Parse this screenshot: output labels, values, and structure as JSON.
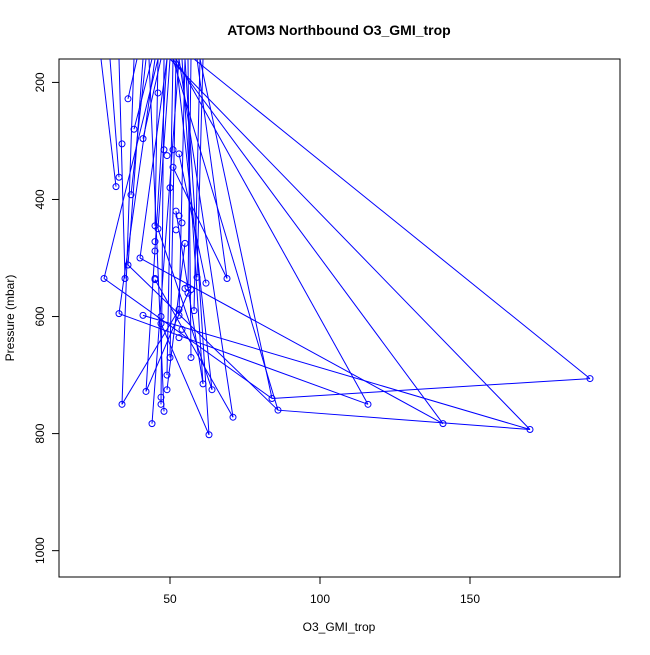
{
  "chart_data": {
    "type": "scatter",
    "title": "ATOM3 Northbound O3_GMI_trop",
    "xlabel": "O3_GMI_trop",
    "ylabel": "Pressure (mbar)",
    "xlim": [
      13,
      200
    ],
    "ylim": [
      1045,
      160
    ],
    "y_inverted": true,
    "x_ticks": [
      50,
      100,
      150
    ],
    "y_ticks": [
      200,
      400,
      600,
      800,
      1000
    ],
    "grid": false,
    "legend": "none",
    "marker": "open-circle",
    "series_color": "#0000ff",
    "series": [
      {
        "points": [
          [
            28,
            535
          ],
          [
            33,
            595
          ],
          [
            34,
            750
          ],
          [
            34,
            305
          ],
          [
            33,
            362
          ],
          [
            32,
            378
          ],
          [
            35,
            535
          ],
          [
            36,
            228
          ],
          [
            36,
            512
          ],
          [
            37,
            392
          ],
          [
            38,
            280
          ],
          [
            40,
            500
          ],
          [
            41,
            296
          ],
          [
            41,
            598
          ],
          [
            42,
            728
          ],
          [
            44,
            783
          ],
          [
            45,
            535
          ],
          [
            45,
            537
          ],
          [
            45,
            445
          ],
          [
            45,
            472
          ],
          [
            45,
            488
          ],
          [
            46,
            450
          ],
          [
            46,
            218
          ],
          [
            47,
            750
          ],
          [
            47,
            600
          ],
          [
            47,
            612
          ],
          [
            47,
            738
          ],
          [
            48,
            762
          ],
          [
            48,
            315
          ],
          [
            49,
            725
          ],
          [
            49,
            700
          ],
          [
            49,
            325
          ],
          [
            50,
            380
          ],
          [
            50,
            670
          ],
          [
            51,
            315
          ],
          [
            51,
            345
          ],
          [
            52,
            420
          ],
          [
            52,
            452
          ],
          [
            53,
            322
          ],
          [
            53,
            428
          ],
          [
            53,
            588
          ],
          [
            53,
            598
          ],
          [
            53,
            636
          ],
          [
            54,
            622
          ],
          [
            54,
            440
          ],
          [
            55,
            475
          ],
          [
            55,
            552
          ],
          [
            56,
            550
          ],
          [
            56,
            560
          ],
          [
            57,
            554
          ],
          [
            57,
            670
          ],
          [
            58,
            590
          ],
          [
            59,
            533
          ],
          [
            61,
            715
          ],
          [
            62,
            543
          ],
          [
            63,
            802
          ],
          [
            64,
            725
          ],
          [
            69,
            535
          ],
          [
            71,
            772
          ],
          [
            84,
            740
          ],
          [
            86,
            760
          ],
          [
            116,
            750
          ],
          [
            141,
            783
          ],
          [
            170,
            793
          ],
          [
            190,
            706
          ]
        ],
        "line_segments": [
          [
            [
              28,
              535
            ],
            [
              46,
              150
            ]
          ],
          [
            [
              33,
              595
            ],
            [
              45,
              150
            ]
          ],
          [
            [
              34,
              750
            ],
            [
              38,
              150
            ]
          ],
          [
            [
              36,
              512
            ],
            [
              41,
              150
            ]
          ],
          [
            [
              35,
              535
            ],
            [
              33,
              150
            ]
          ],
          [
            [
              33,
              362
            ],
            [
              30,
              150
            ]
          ],
          [
            [
              32,
              378
            ],
            [
              27,
              150
            ]
          ],
          [
            [
              36,
              228
            ],
            [
              39,
              150
            ]
          ],
          [
            [
              37,
              392
            ],
            [
              42,
              150
            ]
          ],
          [
            [
              38,
              280
            ],
            [
              44,
              150
            ]
          ],
          [
            [
              40,
              500
            ],
            [
              49,
              150
            ]
          ],
          [
            [
              41,
              296
            ],
            [
              47,
              150
            ]
          ],
          [
            [
              42,
              728
            ],
            [
              49,
              150
            ]
          ],
          [
            [
              44,
              783
            ],
            [
              53,
              150
            ]
          ],
          [
            [
              45,
              445
            ],
            [
              46,
              150
            ]
          ],
          [
            [
              46,
              450
            ],
            [
              50,
              150
            ]
          ],
          [
            [
              47,
              750
            ],
            [
              48,
              150
            ]
          ],
          [
            [
              48,
              762
            ],
            [
              43,
              150
            ]
          ],
          [
            [
              49,
              700
            ],
            [
              51,
              150
            ]
          ],
          [
            [
              50,
              670
            ],
            [
              52,
              150
            ]
          ],
          [
            [
              53,
              598
            ],
            [
              55,
              150
            ]
          ],
          [
            [
              56,
              550
            ],
            [
              57,
              150
            ]
          ],
          [
            [
              57,
              670
            ],
            [
              56,
              150
            ]
          ],
          [
            [
              58,
              590
            ],
            [
              60,
              150
            ]
          ],
          [
            [
              59,
              533
            ],
            [
              61,
              150
            ]
          ],
          [
            [
              61,
              715
            ],
            [
              54,
              150
            ]
          ],
          [
            [
              63,
              802
            ],
            [
              55,
              150
            ]
          ],
          [
            [
              64,
              725
            ],
            [
              52,
              150
            ]
          ],
          [
            [
              69,
              535
            ],
            [
              59,
              150
            ]
          ],
          [
            [
              71,
              772
            ],
            [
              53,
              150
            ]
          ],
          [
            [
              84,
              740
            ],
            [
              60,
              150
            ]
          ],
          [
            [
              86,
              760
            ],
            [
              51,
              150
            ]
          ],
          [
            [
              116,
              750
            ],
            [
              52,
              150
            ]
          ],
          [
            [
              141,
              783
            ],
            [
              51,
              150
            ]
          ],
          [
            [
              170,
              793
            ],
            [
              50,
              150
            ]
          ],
          [
            [
              190,
              706
            ],
            [
              58,
              150
            ]
          ],
          [
            [
              28,
              535
            ],
            [
              84,
              740
            ]
          ],
          [
            [
              33,
              595
            ],
            [
              116,
              750
            ]
          ],
          [
            [
              34,
              750
            ],
            [
              53,
              588
            ]
          ],
          [
            [
              36,
              512
            ],
            [
              86,
              760
            ]
          ],
          [
            [
              40,
              500
            ],
            [
              141,
              783
            ]
          ],
          [
            [
              41,
              598
            ],
            [
              170,
              793
            ]
          ],
          [
            [
              42,
              728
            ],
            [
              56,
              560
            ]
          ],
          [
            [
              45,
              537
            ],
            [
              71,
              772
            ]
          ],
          [
            [
              46,
              450
            ],
            [
              64,
              725
            ]
          ],
          [
            [
              47,
              612
            ],
            [
              63,
              802
            ]
          ],
          [
            [
              49,
              725
            ],
            [
              55,
              475
            ]
          ],
          [
            [
              51,
              345
            ],
            [
              69,
              535
            ]
          ],
          [
            [
              52,
              420
            ],
            [
              61,
              715
            ]
          ],
          [
            [
              53,
              322
            ],
            [
              62,
              543
            ]
          ],
          [
            [
              84,
              740
            ],
            [
              190,
              706
            ]
          ],
          [
            [
              86,
              760
            ],
            [
              170,
              793
            ]
          ]
        ]
      }
    ]
  }
}
